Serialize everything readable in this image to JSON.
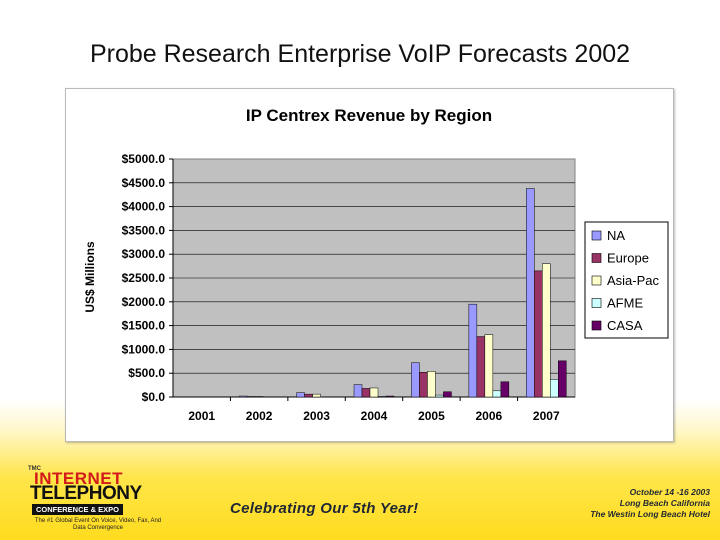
{
  "slide": {
    "title": "Probe Research Enterprise VoIP Forecasts 2002"
  },
  "chart_data": {
    "type": "bar",
    "title": "IP Centrex Revenue by Region",
    "xlabel": "",
    "ylabel": "US$ Millions",
    "ylim": [
      0,
      5000
    ],
    "yticks": [
      "$0.0",
      "$500.0",
      "$1000.0",
      "$1500.0",
      "$2000.0",
      "$2500.0",
      "$3000.0",
      "$3500.0",
      "$4000.0",
      "$4500.0",
      "$5000.0"
    ],
    "categories": [
      "2001",
      "2002",
      "2003",
      "2004",
      "2005",
      "2006",
      "2007"
    ],
    "grid": true,
    "legend_position": "right",
    "series": [
      {
        "name": "NA",
        "color": "#9999ff",
        "values": [
          0,
          20,
          90,
          260,
          720,
          1950,
          4380
        ]
      },
      {
        "name": "Europe",
        "color": "#993366",
        "values": [
          0,
          10,
          60,
          180,
          520,
          1270,
          2650
        ]
      },
      {
        "name": "Asia-Pac",
        "color": "#ffffcc",
        "values": [
          0,
          10,
          60,
          190,
          540,
          1310,
          2800
        ]
      },
      {
        "name": "AFME",
        "color": "#ccffff",
        "values": [
          0,
          0,
          0,
          10,
          40,
          130,
          370
        ]
      },
      {
        "name": "CASA",
        "color": "#660066",
        "values": [
          0,
          0,
          0,
          20,
          110,
          320,
          760
        ]
      }
    ],
    "plot_bg": "#c0c0c0"
  },
  "footer": {
    "logo_tmc": "TMC",
    "logo_line1": "INTERNET",
    "logo_line2": "TELEPHONY",
    "logo_line3": "CONFERENCE & EXPO",
    "logo_line4": "The #1 Global Event On Voice, Video, Fax, And Data Convergence",
    "slogan": "Celebrating Our 5th Year!",
    "event_dates": "October 14 -16 2003",
    "event_location": "Long Beach California",
    "event_venue": "The Westin Long Beach Hotel"
  }
}
